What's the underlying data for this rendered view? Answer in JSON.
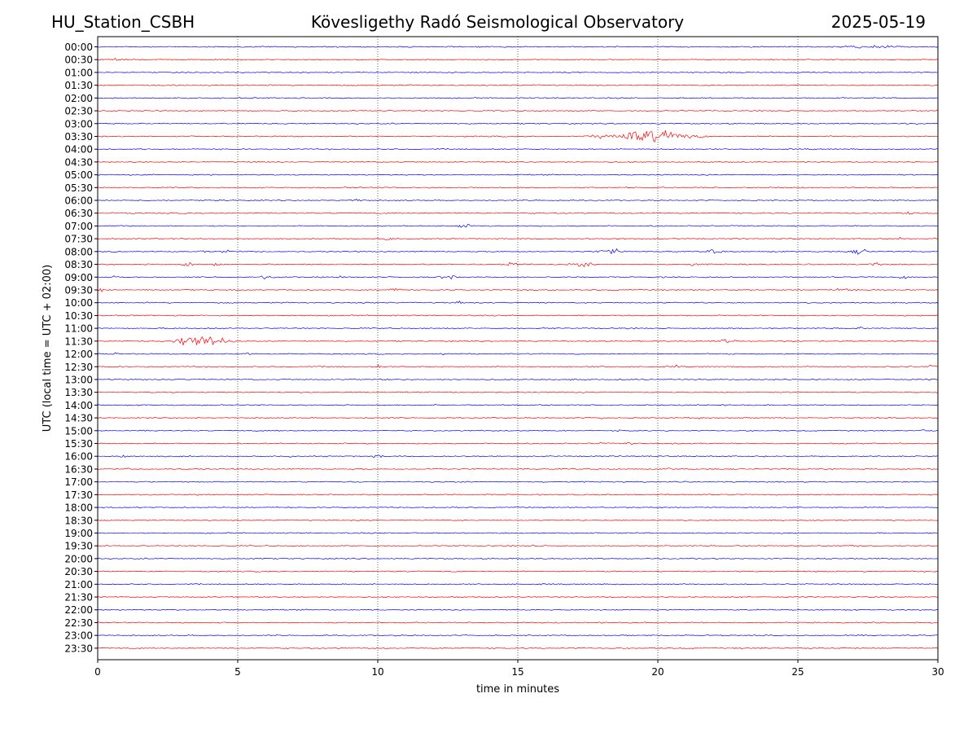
{
  "header": {
    "station": "HU_Station_CSBH",
    "observatory": "Kövesligethy Radó Seismological Observatory",
    "date": "2025-05-19"
  },
  "chart_data": {
    "type": "line",
    "title": "Kövesligethy Radó Seismological Observatory",
    "xlabel": "time in minutes",
    "ylabel": "UTC (local time = UTC + 02:00)",
    "xlim": [
      0,
      30
    ],
    "xticks": [
      0,
      5,
      10,
      15,
      20,
      25,
      30
    ],
    "grid": "vertical dotted at 5-minute ticks",
    "trace_colors": [
      "#0000ff",
      "#ff0000"
    ],
    "rows": [
      {
        "label": "00:00",
        "events": [
          {
            "t": 8.6,
            "amp": 0.25,
            "dur": 0.3
          },
          {
            "t": 27.5,
            "amp": 0.35,
            "dur": 3.5
          }
        ]
      },
      {
        "label": "00:30",
        "events": [
          {
            "t": 0.6,
            "amp": 0.35,
            "dur": 1.2
          }
        ]
      },
      {
        "label": "01:00",
        "events": []
      },
      {
        "label": "01:30",
        "events": []
      },
      {
        "label": "02:00",
        "events": [
          {
            "t": 8.2,
            "amp": 0.2,
            "dur": 0.2
          }
        ]
      },
      {
        "label": "02:30",
        "events": []
      },
      {
        "label": "03:00",
        "events": []
      },
      {
        "label": "03:30",
        "events": [
          {
            "t": 19.6,
            "amp": 1.3,
            "dur": 4.0
          }
        ]
      },
      {
        "label": "04:00",
        "events": []
      },
      {
        "label": "04:30",
        "events": []
      },
      {
        "label": "05:00",
        "events": []
      },
      {
        "label": "05:30",
        "events": []
      },
      {
        "label": "06:00",
        "events": [
          {
            "t": 9.3,
            "amp": 0.35,
            "dur": 0.8
          }
        ]
      },
      {
        "label": "06:30",
        "events": [
          {
            "t": 29.0,
            "amp": 0.4,
            "dur": 0.5
          }
        ]
      },
      {
        "label": "07:00",
        "events": [
          {
            "t": 13.0,
            "amp": 0.4,
            "dur": 1.2
          }
        ]
      },
      {
        "label": "07:30",
        "events": [
          {
            "t": 8.5,
            "amp": 0.5,
            "dur": 0.5
          },
          {
            "t": 10.4,
            "amp": 0.45,
            "dur": 0.6
          },
          {
            "t": 28.6,
            "amp": 0.55,
            "dur": 0.4
          },
          {
            "t": 29.8,
            "amp": 0.45,
            "dur": 0.3
          }
        ]
      },
      {
        "label": "08:00",
        "events": [
          {
            "t": 0.6,
            "amp": 0.5,
            "dur": 0.4
          },
          {
            "t": 3.8,
            "amp": 0.45,
            "dur": 0.4
          },
          {
            "t": 4.6,
            "amp": 0.6,
            "dur": 0.4
          },
          {
            "t": 18.3,
            "amp": 0.65,
            "dur": 1.2
          },
          {
            "t": 22.0,
            "amp": 0.5,
            "dur": 0.8
          },
          {
            "t": 27.2,
            "amp": 0.55,
            "dur": 1.0
          }
        ]
      },
      {
        "label": "08:30",
        "events": [
          {
            "t": 3.2,
            "amp": 0.5,
            "dur": 1.0
          },
          {
            "t": 4.3,
            "amp": 0.6,
            "dur": 0.4
          },
          {
            "t": 14.8,
            "amp": 0.5,
            "dur": 1.2
          },
          {
            "t": 17.3,
            "amp": 0.55,
            "dur": 1.3
          },
          {
            "t": 21.2,
            "amp": 0.45,
            "dur": 1.0
          },
          {
            "t": 27.8,
            "amp": 0.45,
            "dur": 0.6
          }
        ]
      },
      {
        "label": "09:00",
        "events": [
          {
            "t": 0.6,
            "amp": 0.4,
            "dur": 0.5
          },
          {
            "t": 6.0,
            "amp": 0.45,
            "dur": 0.6
          },
          {
            "t": 8.7,
            "amp": 0.45,
            "dur": 0.4
          },
          {
            "t": 12.5,
            "amp": 0.45,
            "dur": 1.0
          },
          {
            "t": 28.8,
            "amp": 0.45,
            "dur": 0.5
          }
        ]
      },
      {
        "label": "09:30",
        "events": [
          {
            "t": 0.1,
            "amp": 0.5,
            "dur": 0.3
          },
          {
            "t": 3.4,
            "amp": 0.4,
            "dur": 0.4
          },
          {
            "t": 10.6,
            "amp": 0.4,
            "dur": 0.7
          },
          {
            "t": 26.8,
            "amp": 0.45,
            "dur": 1.5
          }
        ]
      },
      {
        "label": "10:00",
        "events": [
          {
            "t": 12.9,
            "amp": 0.4,
            "dur": 0.4
          }
        ]
      },
      {
        "label": "10:30",
        "events": []
      },
      {
        "label": "11:00",
        "events": [
          {
            "t": 16.1,
            "amp": 0.4,
            "dur": 0.5
          },
          {
            "t": 27.2,
            "amp": 0.35,
            "dur": 0.4
          }
        ]
      },
      {
        "label": "11:30",
        "events": [
          {
            "t": 3.6,
            "amp": 1.4,
            "dur": 2.4
          },
          {
            "t": 22.5,
            "amp": 0.4,
            "dur": 1.2
          }
        ]
      },
      {
        "label": "12:00",
        "events": [
          {
            "t": 0.7,
            "amp": 0.35,
            "dur": 0.4
          },
          {
            "t": 5.3,
            "amp": 0.35,
            "dur": 0.8
          },
          {
            "t": 12.2,
            "amp": 0.35,
            "dur": 0.7
          }
        ]
      },
      {
        "label": "12:30",
        "events": [
          {
            "t": 10.0,
            "amp": 0.45,
            "dur": 0.3
          },
          {
            "t": 20.7,
            "amp": 0.45,
            "dur": 0.4
          },
          {
            "t": 29.8,
            "amp": 0.35,
            "dur": 0.4
          }
        ]
      },
      {
        "label": "13:00",
        "events": [
          {
            "t": 16.9,
            "amp": 0.35,
            "dur": 0.4
          }
        ]
      },
      {
        "label": "13:30",
        "events": []
      },
      {
        "label": "14:00",
        "events": [
          {
            "t": 12.0,
            "amp": 0.3,
            "dur": 0.8
          },
          {
            "t": 21.3,
            "amp": 0.3,
            "dur": 0.6
          }
        ]
      },
      {
        "label": "14:30",
        "events": [
          {
            "t": 18.0,
            "amp": 0.3,
            "dur": 0.8
          },
          {
            "t": 21.5,
            "amp": 0.3,
            "dur": 0.4
          }
        ]
      },
      {
        "label": "15:00",
        "events": [
          {
            "t": 18.7,
            "amp": 0.3,
            "dur": 0.5
          },
          {
            "t": 29.5,
            "amp": 0.35,
            "dur": 0.5
          }
        ]
      },
      {
        "label": "15:30",
        "events": [
          {
            "t": 18.0,
            "amp": 0.35,
            "dur": 0.6
          },
          {
            "t": 19.0,
            "amp": 0.3,
            "dur": 0.5
          }
        ]
      },
      {
        "label": "16:00",
        "events": [
          {
            "t": 0.9,
            "amp": 0.55,
            "dur": 0.3
          },
          {
            "t": 6.9,
            "amp": 0.35,
            "dur": 0.3
          },
          {
            "t": 10.0,
            "amp": 0.35,
            "dur": 0.5
          }
        ]
      },
      {
        "label": "16:30",
        "events": [
          {
            "t": 1.1,
            "amp": 0.3,
            "dur": 0.4
          },
          {
            "t": 20.4,
            "amp": 0.3,
            "dur": 0.5
          }
        ]
      },
      {
        "label": "17:00",
        "events": []
      },
      {
        "label": "17:30",
        "events": []
      },
      {
        "label": "18:00",
        "events": []
      },
      {
        "label": "18:30",
        "events": []
      },
      {
        "label": "19:00",
        "events": [
          {
            "t": 11.4,
            "amp": 0.25,
            "dur": 0.4
          }
        ]
      },
      {
        "label": "19:30",
        "events": [
          {
            "t": 15.6,
            "amp": 0.45,
            "dur": 0.5
          },
          {
            "t": 27.0,
            "amp": 0.45,
            "dur": 0.5
          }
        ]
      },
      {
        "label": "20:00",
        "events": []
      },
      {
        "label": "20:30",
        "events": []
      },
      {
        "label": "21:00",
        "events": []
      },
      {
        "label": "21:30",
        "events": []
      },
      {
        "label": "22:00",
        "events": []
      },
      {
        "label": "22:30",
        "events": []
      },
      {
        "label": "23:00",
        "events": []
      },
      {
        "label": "23:30",
        "events": []
      }
    ]
  }
}
